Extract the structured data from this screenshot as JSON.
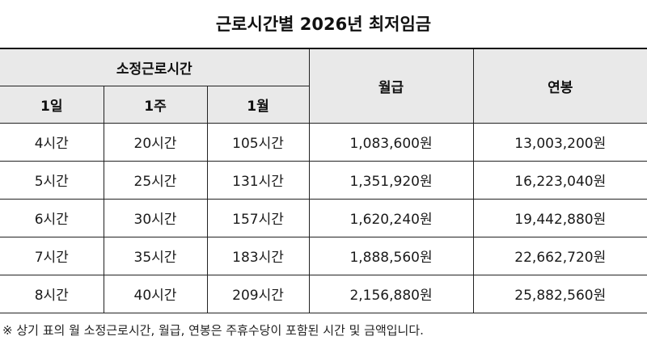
{
  "title": "근로시간별 2026년 최저임금",
  "table": {
    "group_header": "소정근로시간",
    "headers": {
      "day": "1일",
      "week": "1주",
      "month": "1월",
      "monthly_pay": "월급",
      "annual_pay": "연봉"
    },
    "rows": [
      {
        "day": "4시간",
        "week": "20시간",
        "month": "105시간",
        "monthly_pay": "1,083,600원",
        "annual_pay": "13,003,200원"
      },
      {
        "day": "5시간",
        "week": "25시간",
        "month": "131시간",
        "monthly_pay": "1,351,920원",
        "annual_pay": "16,223,040원"
      },
      {
        "day": "6시간",
        "week": "30시간",
        "month": "157시간",
        "monthly_pay": "1,620,240원",
        "annual_pay": "19,442,880원"
      },
      {
        "day": "7시간",
        "week": "35시간",
        "month": "183시간",
        "monthly_pay": "1,888,560원",
        "annual_pay": "22,662,720원"
      },
      {
        "day": "8시간",
        "week": "40시간",
        "month": "209시간",
        "monthly_pay": "2,156,880원",
        "annual_pay": "25,882,560원"
      }
    ]
  },
  "note": "※ 상기 표의 월 소정근로시간, 월급, 연봉은 주휴수당이 포함된 시간 및 금액입니다."
}
